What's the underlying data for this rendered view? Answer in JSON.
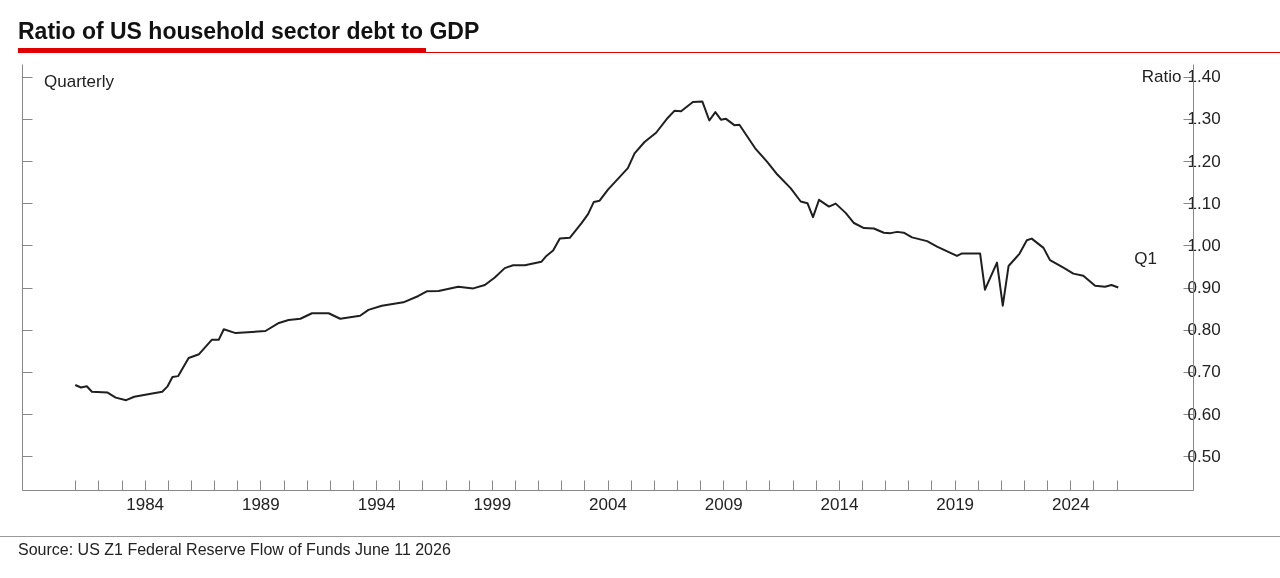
{
  "chart_data": {
    "type": "line",
    "title": "Ratio of US household sector debt to GDP",
    "ylabel": "Ratio",
    "annotations": [
      "Quarterly",
      "Source: US Z1 Federal Reserve Flow of Funds June 11 2026",
      {
        "text": "Q1",
        "x": 2026.07,
        "y": 0.9
      }
    ],
    "x": [
      1981.0,
      1981.25,
      1981.5,
      1981.72,
      1982.4,
      1982.75,
      1983.2,
      1983.55,
      1984.33,
      1984.76,
      1984.98,
      1985.2,
      1985.45,
      1985.9,
      1986.35,
      1986.9,
      1987.2,
      1987.42,
      1987.93,
      1989.22,
      1989.8,
      1990.22,
      1990.73,
      1991.23,
      1991.95,
      1992.45,
      1993.31,
      1993.67,
      1994.25,
      1995.18,
      1995.83,
      1996.19,
      1996.7,
      1997.55,
      1998.2,
      1998.7,
      1999.13,
      1999.56,
      1999.92,
      2000.43,
      2001.14,
      2001.36,
      2001.65,
      2001.94,
      2002.37,
      2002.87,
      2003.16,
      2003.41,
      2003.66,
      2004.02,
      2004.88,
      2005.17,
      2005.6,
      2006.1,
      2006.6,
      2006.89,
      2007.18,
      2007.69,
      2008.1,
      2008.4,
      2008.66,
      2008.9,
      2009.12,
      2009.48,
      2009.7,
      2010.41,
      2010.9,
      2011.34,
      2011.92,
      2012.35,
      2012.64,
      2012.88,
      2013.14,
      2013.57,
      2013.86,
      2014.29,
      2014.65,
      2015.08,
      2015.51,
      2015.94,
      2016.23,
      2016.52,
      2016.8,
      2017.16,
      2017.81,
      2018.24,
      2019.1,
      2019.32,
      2020.1,
      2020.31,
      2020.83,
      2021.08,
      2021.33,
      2021.8,
      2022.12,
      2022.33,
      2022.84,
      2023.12,
      2023.7,
      2024.13,
      2024.56,
      2025.07,
      2025.5,
      2025.78,
      2026.07
    ],
    "series": [
      {
        "color": "#1f1f1f",
        "values": [
          0.669,
          0.663,
          0.666,
          0.653,
          0.651,
          0.639,
          0.633,
          0.641,
          0.649,
          0.653,
          0.665,
          0.688,
          0.69,
          0.733,
          0.742,
          0.776,
          0.776,
          0.801,
          0.792,
          0.797,
          0.816,
          0.823,
          0.826,
          0.839,
          0.839,
          0.826,
          0.833,
          0.847,
          0.857,
          0.865,
          0.88,
          0.891,
          0.892,
          0.902,
          0.898,
          0.906,
          0.924,
          0.946,
          0.953,
          0.953,
          0.961,
          0.975,
          0.988,
          1.016,
          1.018,
          1.052,
          1.074,
          1.103,
          1.106,
          1.132,
          1.183,
          1.218,
          1.245,
          1.267,
          1.302,
          1.319,
          1.318,
          1.34,
          1.341,
          1.296,
          1.316,
          1.298,
          1.3,
          1.285,
          1.286,
          1.228,
          1.198,
          1.168,
          1.135,
          1.104,
          1.1,
          1.067,
          1.108,
          1.092,
          1.099,
          1.077,
          1.053,
          1.041,
          1.04,
          1.03,
          1.029,
          1.032,
          1.03,
          1.019,
          1.01,
          0.997,
          0.975,
          0.981,
          0.981,
          0.895,
          0.959,
          0.857,
          0.951,
          0.98,
          1.012,
          1.016,
          0.994,
          0.965,
          0.947,
          0.933,
          0.928,
          0.904,
          0.902,
          0.906,
          0.9
        ]
      }
    ],
    "xlim": [
      1978.7,
      2029.3
    ],
    "ylim": [
      0.42,
      1.43
    ],
    "xticks": [
      {
        "value": 1981,
        "label": null
      },
      {
        "value": 1982,
        "label": null
      },
      {
        "value": 1983,
        "label": null
      },
      1984,
      {
        "value": 1985,
        "label": null
      },
      {
        "value": 1986,
        "label": null
      },
      {
        "value": 1987,
        "label": null
      },
      {
        "value": 1988,
        "label": null
      },
      1989,
      {
        "value": 1990,
        "label": null
      },
      {
        "value": 1991,
        "label": null
      },
      {
        "value": 1992,
        "label": null
      },
      {
        "value": 1993,
        "label": null
      },
      1994,
      {
        "value": 1995,
        "label": null
      },
      {
        "value": 1996,
        "label": null
      },
      {
        "value": 1997,
        "label": null
      },
      {
        "value": 1998,
        "label": null
      },
      1999,
      {
        "value": 2000,
        "label": null
      },
      {
        "value": 2001,
        "label": null
      },
      {
        "value": 2002,
        "label": null
      },
      {
        "value": 2003,
        "label": null
      },
      2004,
      {
        "value": 2005,
        "label": null
      },
      {
        "value": 2006,
        "label": null
      },
      {
        "value": 2007,
        "label": null
      },
      {
        "value": 2008,
        "label": null
      },
      2009,
      {
        "value": 2010,
        "label": null
      },
      {
        "value": 2011,
        "label": null
      },
      {
        "value": 2012,
        "label": null
      },
      {
        "value": 2013,
        "label": null
      },
      2014,
      {
        "value": 2015,
        "label": null
      },
      {
        "value": 2016,
        "label": null
      },
      {
        "value": 2017,
        "label": null
      },
      {
        "value": 2018,
        "label": null
      },
      2019,
      {
        "value": 2020,
        "label": null
      },
      {
        "value": 2021,
        "label": null
      },
      {
        "value": 2022,
        "label": null
      },
      {
        "value": 2023,
        "label": null
      },
      2024,
      {
        "value": 2025,
        "label": null
      },
      {
        "value": 2026,
        "label": null
      }
    ],
    "yticks": [
      {
        "value": 0.5,
        "label": "0.50"
      },
      {
        "value": 0.6,
        "label": "0.60"
      },
      {
        "value": 0.7,
        "label": "0.70"
      },
      {
        "value": 0.8,
        "label": "0.80"
      },
      {
        "value": 0.9,
        "label": "0.90"
      },
      {
        "value": 1.0,
        "label": "1.00"
      },
      {
        "value": 1.1,
        "label": "1.10"
      },
      {
        "value": 1.2,
        "label": "1.20"
      },
      {
        "value": 1.3,
        "label": "1.30"
      },
      {
        "value": 1.4,
        "label": "1.40"
      }
    ]
  }
}
